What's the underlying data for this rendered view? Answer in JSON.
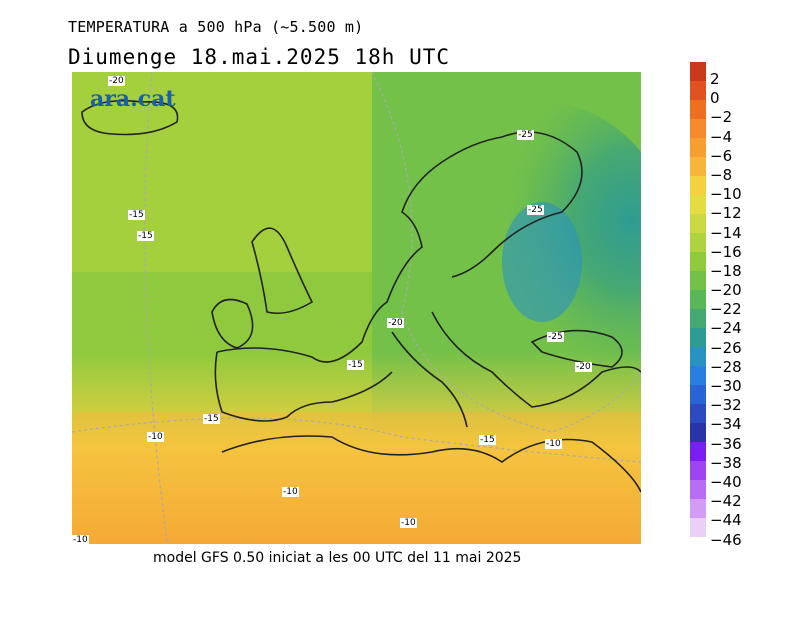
{
  "title_line1": "TEMPERATURA a 500 hPa (~5.500 m)",
  "title_line2": "Diumenge  18.mai.2025  18h  UTC",
  "footer": "model GFS 0.50 iniciat a les 00 UTC del 11 mai 2025",
  "logo": "ara.cat",
  "legend": {
    "labels": [
      "2",
      "0",
      "−2",
      "−4",
      "−6",
      "−8",
      "−10",
      "−12",
      "−14",
      "−16",
      "−18",
      "−20",
      "−22",
      "−24",
      "−26",
      "−28",
      "−30",
      "−32",
      "−34",
      "−36",
      "−38",
      "−40",
      "−42",
      "−44",
      "−46"
    ],
    "colors": [
      "#c8391d",
      "#e0521f",
      "#ee6f22",
      "#f38a2c",
      "#f59f33",
      "#f7b63b",
      "#f5d040",
      "#e5dc44",
      "#c9d843",
      "#add33f",
      "#8fca3e",
      "#74c14a",
      "#5bb65a",
      "#45a873",
      "#2f9c93",
      "#2a92c0",
      "#2a7ee0",
      "#2a63d6",
      "#2c4bbf",
      "#2a34a6",
      "#7a1ff0",
      "#9c44f0",
      "#b86ef2",
      "#d39bf4",
      "#ead0f8"
    ]
  },
  "contour_labels": [
    {
      "text": "-20"
    },
    {
      "text": "-25"
    },
    {
      "text": "-15"
    },
    {
      "text": "-15"
    },
    {
      "text": "-25"
    },
    {
      "text": "-20"
    },
    {
      "text": "-25"
    },
    {
      "text": "-15"
    },
    {
      "text": "-20"
    },
    {
      "text": "-15"
    },
    {
      "text": "-10"
    },
    {
      "text": "-15"
    },
    {
      "text": "-10"
    },
    {
      "text": "-10"
    },
    {
      "text": "-10"
    },
    {
      "text": "-10"
    }
  ]
}
